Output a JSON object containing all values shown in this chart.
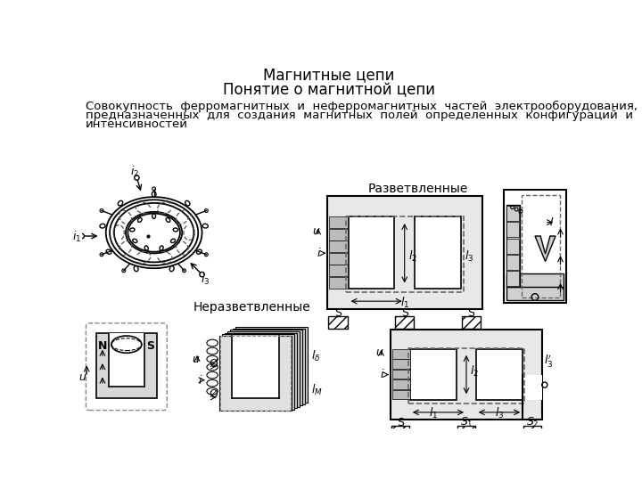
{
  "title1": "Магнитные цепи",
  "title2": "Понятие о магнитной цепи",
  "body_text": "Совокупность  ферромагнитных  и  неферромагнитных  частей  электрооборудования,\nпредназначенных  для  создания  магнитных  полей  определенных  конфигураций  и\nинтенсивностей",
  "label_razv": "Разветвленные",
  "label_nerazv": "Неразветвленные",
  "bg_color": "#ffffff",
  "lc": "#000000",
  "gray": "#888888"
}
